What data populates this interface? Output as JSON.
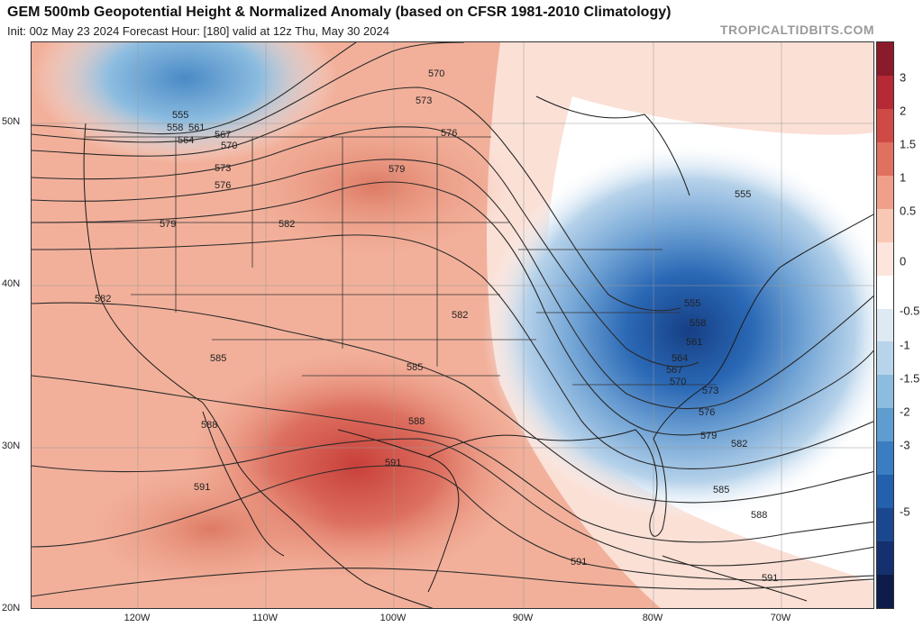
{
  "header": {
    "title": "GEM 500mb Geopotential Height & Normalized Anomaly (based on CFSR 1981-2010 Climatology)",
    "subtitle": "Init: 00z May 23 2024   Forecast Hour: [180]   valid at 12z Thu, May 30 2024",
    "brand": "TROPICALTIDBITS.COM"
  },
  "axes": {
    "lat_labels": [
      "50N",
      "40N",
      "30N",
      "20N"
    ],
    "lon_labels": [
      "120W",
      "110W",
      "100W",
      "90W",
      "80W",
      "70W"
    ]
  },
  "colorbar": {
    "labels": [
      "3",
      "2",
      "1.5",
      "1",
      "0.5",
      "0",
      "-0.5",
      "-1",
      "-1.5",
      "-2",
      "-3",
      "-5"
    ],
    "colors": [
      "#8b1a2a",
      "#b52a35",
      "#d04a45",
      "#e07060",
      "#f0a088",
      "#f8c8b4",
      "#fde4dc",
      "#ffffff",
      "#dde9f3",
      "#b8d4ea",
      "#8cbcdf",
      "#5f9ccf",
      "#3a7dc2",
      "#2360ad",
      "#1a4890",
      "#14306e",
      "#0d1c4a"
    ]
  },
  "contours": {
    "labels": [
      "555",
      "558",
      "561",
      "564",
      "567",
      "570",
      "573",
      "576",
      "579",
      "582",
      "585",
      "588",
      "591"
    ]
  },
  "colors": {
    "warm": "#e89a80",
    "warm_strong": "#d9604e",
    "cool": "#6fa6d6",
    "cool_strong": "#2460ad"
  }
}
